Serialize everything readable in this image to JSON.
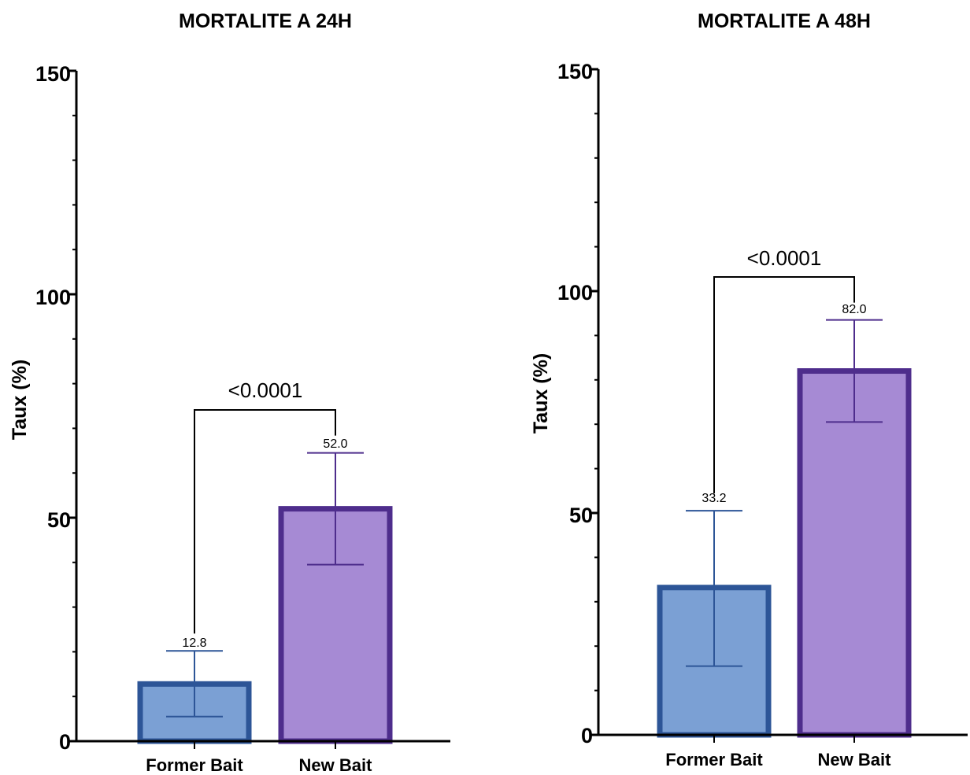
{
  "chart_data": [
    {
      "type": "bar",
      "title": "MORTALITE  A 24H",
      "ylabel": "Taux (%)",
      "xlabel": "",
      "ylim": [
        0,
        150
      ],
      "yticks": [
        "0",
        "50",
        "100",
        "150"
      ],
      "categories": [
        "Former Bait",
        "New Bait"
      ],
      "values": [
        12.8,
        52.0
      ],
      "value_labels": [
        "12.8",
        "52.0"
      ],
      "error_low": [
        5.5,
        39.5
      ],
      "error_high": [
        20.2,
        64.5
      ],
      "bar_fill": [
        "#7ba0d4",
        "#a68ad4"
      ],
      "bar_edge": [
        "#2d5597",
        "#4e2d8c"
      ],
      "significance": {
        "label": "<0.0001",
        "between": [
          0,
          1
        ]
      },
      "grid": false
    },
    {
      "type": "bar",
      "title": "MORTALITE A 48H",
      "ylabel": "Taux (%)",
      "xlabel": "",
      "ylim": [
        0,
        150
      ],
      "yticks": [
        "0",
        "50",
        "100",
        "150"
      ],
      "categories": [
        "Former Bait",
        "New Bait"
      ],
      "values": [
        33.2,
        82.0
      ],
      "value_labels": [
        "33.2",
        "82.0"
      ],
      "error_low": [
        15.5,
        70.5
      ],
      "error_high": [
        50.5,
        93.5
      ],
      "bar_fill": [
        "#7ba0d4",
        "#a68ad4"
      ],
      "bar_edge": [
        "#2d5597",
        "#4e2d8c"
      ],
      "significance": {
        "label": "<0.0001",
        "between": [
          0,
          1
        ]
      },
      "grid": false
    }
  ]
}
